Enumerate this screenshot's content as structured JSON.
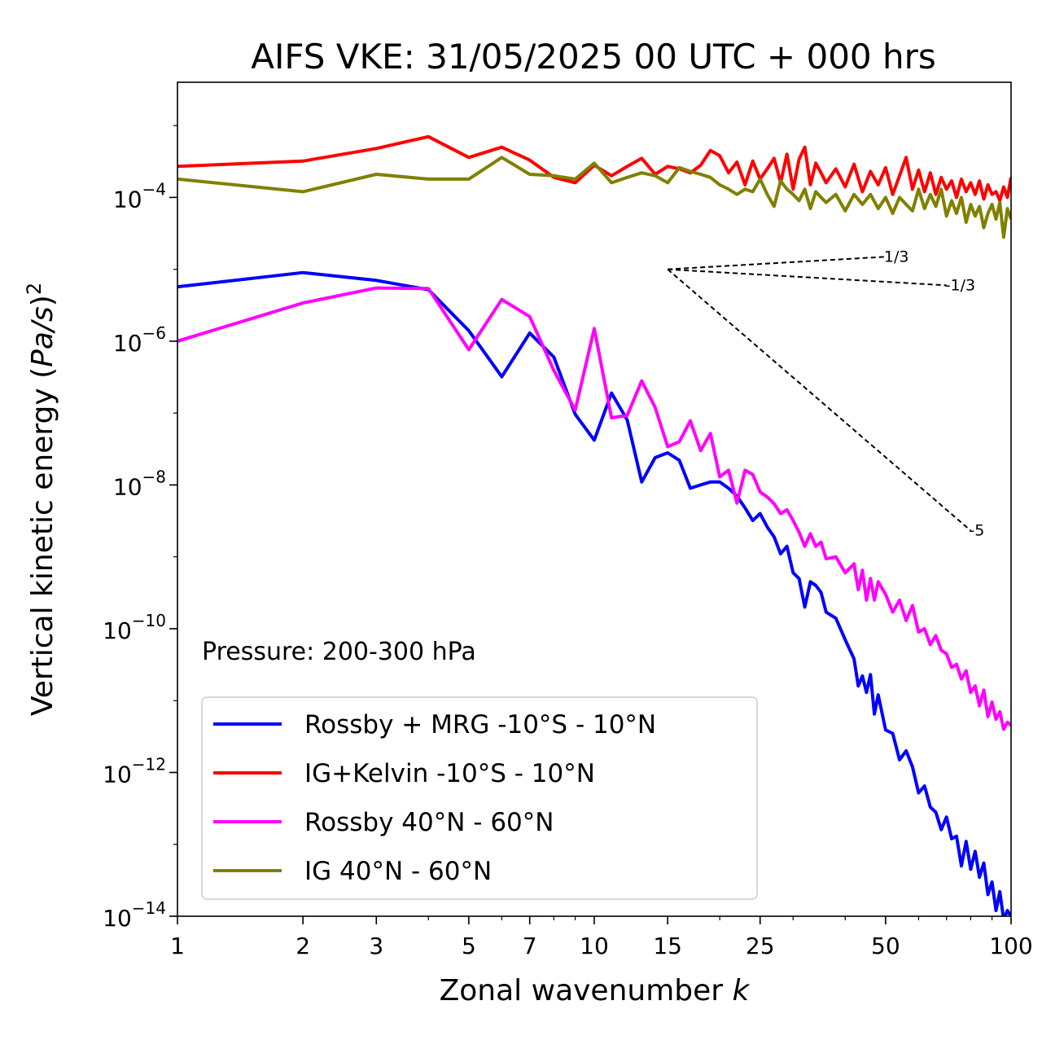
{
  "chart_data": {
    "type": "line",
    "title": "AIFS VKE: 31/05/2025 00 UTC + 000 hrs",
    "xlabel_prefix": "Zonal wavenumber ",
    "xlabel_var": "k",
    "ylabel_prefix": "Vertical kinetic energy (",
    "ylabel_var": "Pa/s",
    "ylabel_suffix": ")",
    "ylabel_exp": "2",
    "x_scale": "log",
    "y_scale": "log",
    "xlim": [
      1,
      100
    ],
    "ylim": [
      1e-14,
      0.004
    ],
    "x_ticks": [
      1,
      2,
      3,
      5,
      7,
      10,
      15,
      25,
      50,
      100
    ],
    "x_tick_labels": [
      "1",
      "2",
      "3",
      "5",
      "7",
      "10",
      "15",
      "25",
      "50",
      "100"
    ],
    "y_ticks": [
      {
        "value": 0.0001,
        "base": "10",
        "exp": "−4"
      },
      {
        "value": 1e-06,
        "base": "10",
        "exp": "−6"
      },
      {
        "value": 1e-08,
        "base": "10",
        "exp": "−8"
      },
      {
        "value": 1e-10,
        "base": "10",
        "exp": "−10"
      },
      {
        "value": 1e-12,
        "base": "10",
        "exp": "−12"
      },
      {
        "value": 1e-14,
        "base": "10",
        "exp": "−14"
      }
    ],
    "grid": false,
    "legend_placement": "lower-left",
    "annotation": "Pressure: 200-300 hPa",
    "slope_lines": [
      {
        "label": "1/3",
        "slope": 0.3333,
        "x0": 15,
        "y0": 1e-05,
        "x1": 50
      },
      {
        "label": "-1/3",
        "slope": -0.3333,
        "x0": 15,
        "y0": 1e-05,
        "x1": 70
      },
      {
        "label": "-5",
        "slope": -5,
        "x0": 15,
        "y0": 1e-05,
        "x1": 80
      }
    ],
    "series": [
      {
        "name": "Rossby + MRG -10°S - 10°N",
        "color": "#0000ff",
        "points": [
          [
            1,
            5.7e-06
          ],
          [
            2,
            9e-06
          ],
          [
            3,
            7e-06
          ],
          [
            4,
            5.2e-06
          ],
          [
            5,
            1.4e-06
          ],
          [
            6,
            3.2e-07
          ],
          [
            7,
            1.3e-06
          ],
          [
            8,
            6e-07
          ],
          [
            9,
            9.6e-08
          ],
          [
            10,
            4.2e-08
          ],
          [
            11,
            1.9e-07
          ],
          [
            12,
            8e-08
          ],
          [
            13,
            1.1e-08
          ],
          [
            14,
            2.4e-08
          ],
          [
            15,
            2.8e-08
          ],
          [
            16,
            2.2e-08
          ],
          [
            17,
            9e-09
          ],
          [
            18,
            1e-08
          ],
          [
            19,
            1.1e-08
          ],
          [
            20,
            1.1e-08
          ],
          [
            21,
            9e-09
          ],
          [
            22,
            7e-09
          ],
          [
            23,
            4.8e-09
          ],
          [
            24,
            3.2e-09
          ],
          [
            25,
            4e-09
          ],
          [
            26,
            2.6e-09
          ],
          [
            27,
            1.9e-09
          ],
          [
            28,
            1.1e-09
          ],
          [
            29,
            1.4e-09
          ],
          [
            30,
            6e-10
          ],
          [
            31,
            5e-10
          ],
          [
            32,
            2e-10
          ],
          [
            33,
            4.5e-10
          ],
          [
            34,
            4e-10
          ],
          [
            35,
            3.2e-10
          ],
          [
            36,
            1.7e-10
          ],
          [
            38,
            1.4e-10
          ],
          [
            40,
            7e-11
          ],
          [
            42,
            3.8e-11
          ],
          [
            43,
            1.6e-11
          ],
          [
            44,
            2.2e-11
          ],
          [
            45,
            1.3e-11
          ],
          [
            46,
            2.3e-11
          ],
          [
            47,
            6.5e-12
          ],
          [
            48,
            1.2e-11
          ],
          [
            50,
            3.9e-12
          ],
          [
            52,
            3.5e-12
          ],
          [
            54,
            1.5e-12
          ],
          [
            56,
            2e-12
          ],
          [
            58,
            1.2e-12
          ],
          [
            60,
            5.2e-13
          ],
          [
            62,
            6.5e-13
          ],
          [
            64,
            3.3e-13
          ],
          [
            66,
            2.8e-13
          ],
          [
            68,
            1.6e-13
          ],
          [
            70,
            2.4e-13
          ],
          [
            72,
            1.2e-13
          ],
          [
            74,
            1.3e-13
          ],
          [
            76,
            5e-14
          ],
          [
            78,
            1.1e-13
          ],
          [
            80,
            4.5e-14
          ],
          [
            82,
            8e-14
          ],
          [
            84,
            3.5e-14
          ],
          [
            86,
            5.5e-14
          ],
          [
            88,
            2e-14
          ],
          [
            90,
            3e-14
          ],
          [
            92,
            1.2e-14
          ],
          [
            94,
            2.2e-14
          ],
          [
            96,
            9e-15
          ],
          [
            98,
            1.2e-14
          ],
          [
            100,
            1e-14
          ]
        ]
      },
      {
        "name": "IG+Kelvin -10°S - 10°N",
        "color": "#ff0000",
        "points": [
          [
            1,
            0.00027
          ],
          [
            2,
            0.00032
          ],
          [
            3,
            0.00048
          ],
          [
            4,
            0.0007
          ],
          [
            5,
            0.00036
          ],
          [
            6,
            0.0005
          ],
          [
            7,
            0.00033
          ],
          [
            8,
            0.00019
          ],
          [
            9,
            0.00016
          ],
          [
            10,
            0.00028
          ],
          [
            11,
            0.0002
          ],
          [
            12,
            0.00027
          ],
          [
            13,
            0.00035
          ],
          [
            14,
            0.00021
          ],
          [
            15,
            0.00027
          ],
          [
            16,
            0.00025
          ],
          [
            17,
            0.00022
          ],
          [
            18,
            0.00028
          ],
          [
            19,
            0.00045
          ],
          [
            20,
            0.00038
          ],
          [
            21,
            0.00022
          ],
          [
            22,
            0.00031
          ],
          [
            23,
            0.00015
          ],
          [
            24,
            0.00032
          ],
          [
            25,
            0.00018
          ],
          [
            26,
            0.00025
          ],
          [
            27,
            0.00035
          ],
          [
            28,
            0.00016
          ],
          [
            29,
            0.0004
          ],
          [
            30,
            0.00013
          ],
          [
            31,
            0.00034
          ],
          [
            32,
            0.0005
          ],
          [
            33,
            0.00015
          ],
          [
            34,
            0.0003
          ],
          [
            35,
            0.00022
          ],
          [
            36,
            0.00016
          ],
          [
            38,
            0.00025
          ],
          [
            40,
            0.00014
          ],
          [
            42,
            0.00029
          ],
          [
            44,
            0.00012
          ],
          [
            46,
            0.00023
          ],
          [
            48,
            0.00015
          ],
          [
            50,
            0.00026
          ],
          [
            52,
            0.00011
          ],
          [
            54,
            0.0002
          ],
          [
            56,
            0.00036
          ],
          [
            58,
            0.00013
          ],
          [
            60,
            0.00024
          ],
          [
            62,
            0.00012
          ],
          [
            64,
            0.00022
          ],
          [
            66,
            0.00011
          ],
          [
            68,
            0.00019
          ],
          [
            70,
            0.00013
          ],
          [
            72,
            0.00017
          ],
          [
            74,
            0.0001
          ],
          [
            76,
            0.00018
          ],
          [
            78,
            0.00012
          ],
          [
            80,
            0.00016
          ],
          [
            82,
            0.00011
          ],
          [
            84,
            0.00017
          ],
          [
            86,
            9.5e-05
          ],
          [
            88,
            0.00015
          ],
          [
            90,
            0.00011
          ],
          [
            92,
            0.00012
          ],
          [
            94,
            9e-05
          ],
          [
            96,
            0.00014
          ],
          [
            98,
            0.0001
          ],
          [
            100,
            0.00019
          ]
        ]
      },
      {
        "name": "Rossby 40°N - 60°N",
        "color": "#ff00ff",
        "points": [
          [
            1,
            1e-06
          ],
          [
            2,
            3.4e-06
          ],
          [
            3,
            5.5e-06
          ],
          [
            4,
            5.4e-06
          ],
          [
            5,
            7.6e-07
          ],
          [
            6,
            3.8e-06
          ],
          [
            7,
            2.2e-06
          ],
          [
            8,
            3.9e-07
          ],
          [
            9,
            1.1e-07
          ],
          [
            10,
            1.5e-06
          ],
          [
            11,
            8.6e-08
          ],
          [
            12,
            9.3e-08
          ],
          [
            13,
            2.8e-07
          ],
          [
            14,
            1.2e-07
          ],
          [
            15,
            3.4e-08
          ],
          [
            16,
            4e-08
          ],
          [
            17,
            7.8e-08
          ],
          [
            18,
            3e-08
          ],
          [
            19,
            5.2e-08
          ],
          [
            20,
            1.3e-08
          ],
          [
            21,
            1.6e-08
          ],
          [
            22,
            5.6e-09
          ],
          [
            23,
            1.6e-08
          ],
          [
            24,
            1.4e-08
          ],
          [
            25,
            8e-09
          ],
          [
            26,
            6.8e-09
          ],
          [
            27,
            5.5e-09
          ],
          [
            28,
            4e-09
          ],
          [
            29,
            4.5e-09
          ],
          [
            30,
            3.2e-09
          ],
          [
            31,
            2.2e-09
          ],
          [
            32,
            1.4e-09
          ],
          [
            33,
            2.1e-09
          ],
          [
            34,
            1.4e-09
          ],
          [
            35,
            1.6e-09
          ],
          [
            36,
            9.4e-10
          ],
          [
            38,
            1e-09
          ],
          [
            40,
            6e-10
          ],
          [
            42,
            8e-10
          ],
          [
            43,
            3.5e-10
          ],
          [
            44,
            6.5e-10
          ],
          [
            45,
            2.5e-10
          ],
          [
            46,
            5e-10
          ],
          [
            47,
            2.5e-10
          ],
          [
            48,
            4.5e-10
          ],
          [
            50,
            3e-10
          ],
          [
            52,
            1.7e-10
          ],
          [
            54,
            2.5e-10
          ],
          [
            56,
            1.3e-10
          ],
          [
            58,
            2.1e-10
          ],
          [
            60,
            9e-11
          ],
          [
            62,
            1e-10
          ],
          [
            64,
            6e-11
          ],
          [
            66,
            8e-11
          ],
          [
            68,
            5e-11
          ],
          [
            70,
            4.5e-11
          ],
          [
            72,
            2.9e-11
          ],
          [
            74,
            3.2e-11
          ],
          [
            76,
            2e-11
          ],
          [
            78,
            2.6e-11
          ],
          [
            80,
            1.3e-11
          ],
          [
            82,
            1.6e-11
          ],
          [
            84,
            8.5e-12
          ],
          [
            86,
            1.4e-11
          ],
          [
            88,
            6e-12
          ],
          [
            90,
            9.5e-12
          ],
          [
            92,
            5.5e-12
          ],
          [
            94,
            7e-12
          ],
          [
            96,
            4e-12
          ],
          [
            98,
            5e-12
          ],
          [
            100,
            4.5e-12
          ]
        ]
      },
      {
        "name": "IG 40°N - 60°N",
        "color": "#808000",
        "points": [
          [
            1,
            0.00018
          ],
          [
            2,
            0.00012
          ],
          [
            3,
            0.00021
          ],
          [
            4,
            0.00018
          ],
          [
            5,
            0.00018
          ],
          [
            6,
            0.00036
          ],
          [
            7,
            0.00021
          ],
          [
            8,
            0.0002
          ],
          [
            9,
            0.00018
          ],
          [
            10,
            0.0003
          ],
          [
            11,
            0.00016
          ],
          [
            12,
            0.00019
          ],
          [
            13,
            0.00022
          ],
          [
            14,
            0.0002
          ],
          [
            15,
            0.00016
          ],
          [
            16,
            0.00026
          ],
          [
            17,
            0.00023
          ],
          [
            18,
            0.00021
          ],
          [
            19,
            0.00019
          ],
          [
            20,
            0.00015
          ],
          [
            21,
            0.00013
          ],
          [
            22,
            0.00011
          ],
          [
            23,
            0.00013
          ],
          [
            24,
            0.00012
          ],
          [
            25,
            0.00018
          ],
          [
            26,
            0.00011
          ],
          [
            27,
            7.5e-05
          ],
          [
            28,
            0.00017
          ],
          [
            29,
            0.00013
          ],
          [
            30,
            0.00011
          ],
          [
            31,
            9e-05
          ],
          [
            32,
            0.00013
          ],
          [
            33,
            7e-05
          ],
          [
            34,
            0.00012
          ],
          [
            35,
            0.0001
          ],
          [
            36,
            8.5e-05
          ],
          [
            38,
            0.00011
          ],
          [
            40,
            6.5e-05
          ],
          [
            42,
            0.00011
          ],
          [
            44,
            8e-05
          ],
          [
            46,
            0.00011
          ],
          [
            48,
            7e-05
          ],
          [
            50,
            0.0001
          ],
          [
            52,
            6e-05
          ],
          [
            54,
            0.0001
          ],
          [
            56,
            8e-05
          ],
          [
            58,
            6.5e-05
          ],
          [
            60,
            0.00013
          ],
          [
            62,
            7e-05
          ],
          [
            64,
            0.00011
          ],
          [
            66,
            7.5e-05
          ],
          [
            68,
            0.00013
          ],
          [
            70,
            5.5e-05
          ],
          [
            72,
            9e-05
          ],
          [
            74,
            6e-05
          ],
          [
            76,
            0.0001
          ],
          [
            78,
            4.5e-05
          ],
          [
            80,
            8e-05
          ],
          [
            82,
            5.5e-05
          ],
          [
            84,
            7.5e-05
          ],
          [
            86,
            3.8e-05
          ],
          [
            88,
            6e-05
          ],
          [
            90,
            8e-05
          ],
          [
            92,
            5e-05
          ],
          [
            94,
            8.5e-05
          ],
          [
            96,
            2.8e-05
          ],
          [
            98,
            7e-05
          ],
          [
            100,
            5e-05
          ]
        ]
      }
    ]
  }
}
